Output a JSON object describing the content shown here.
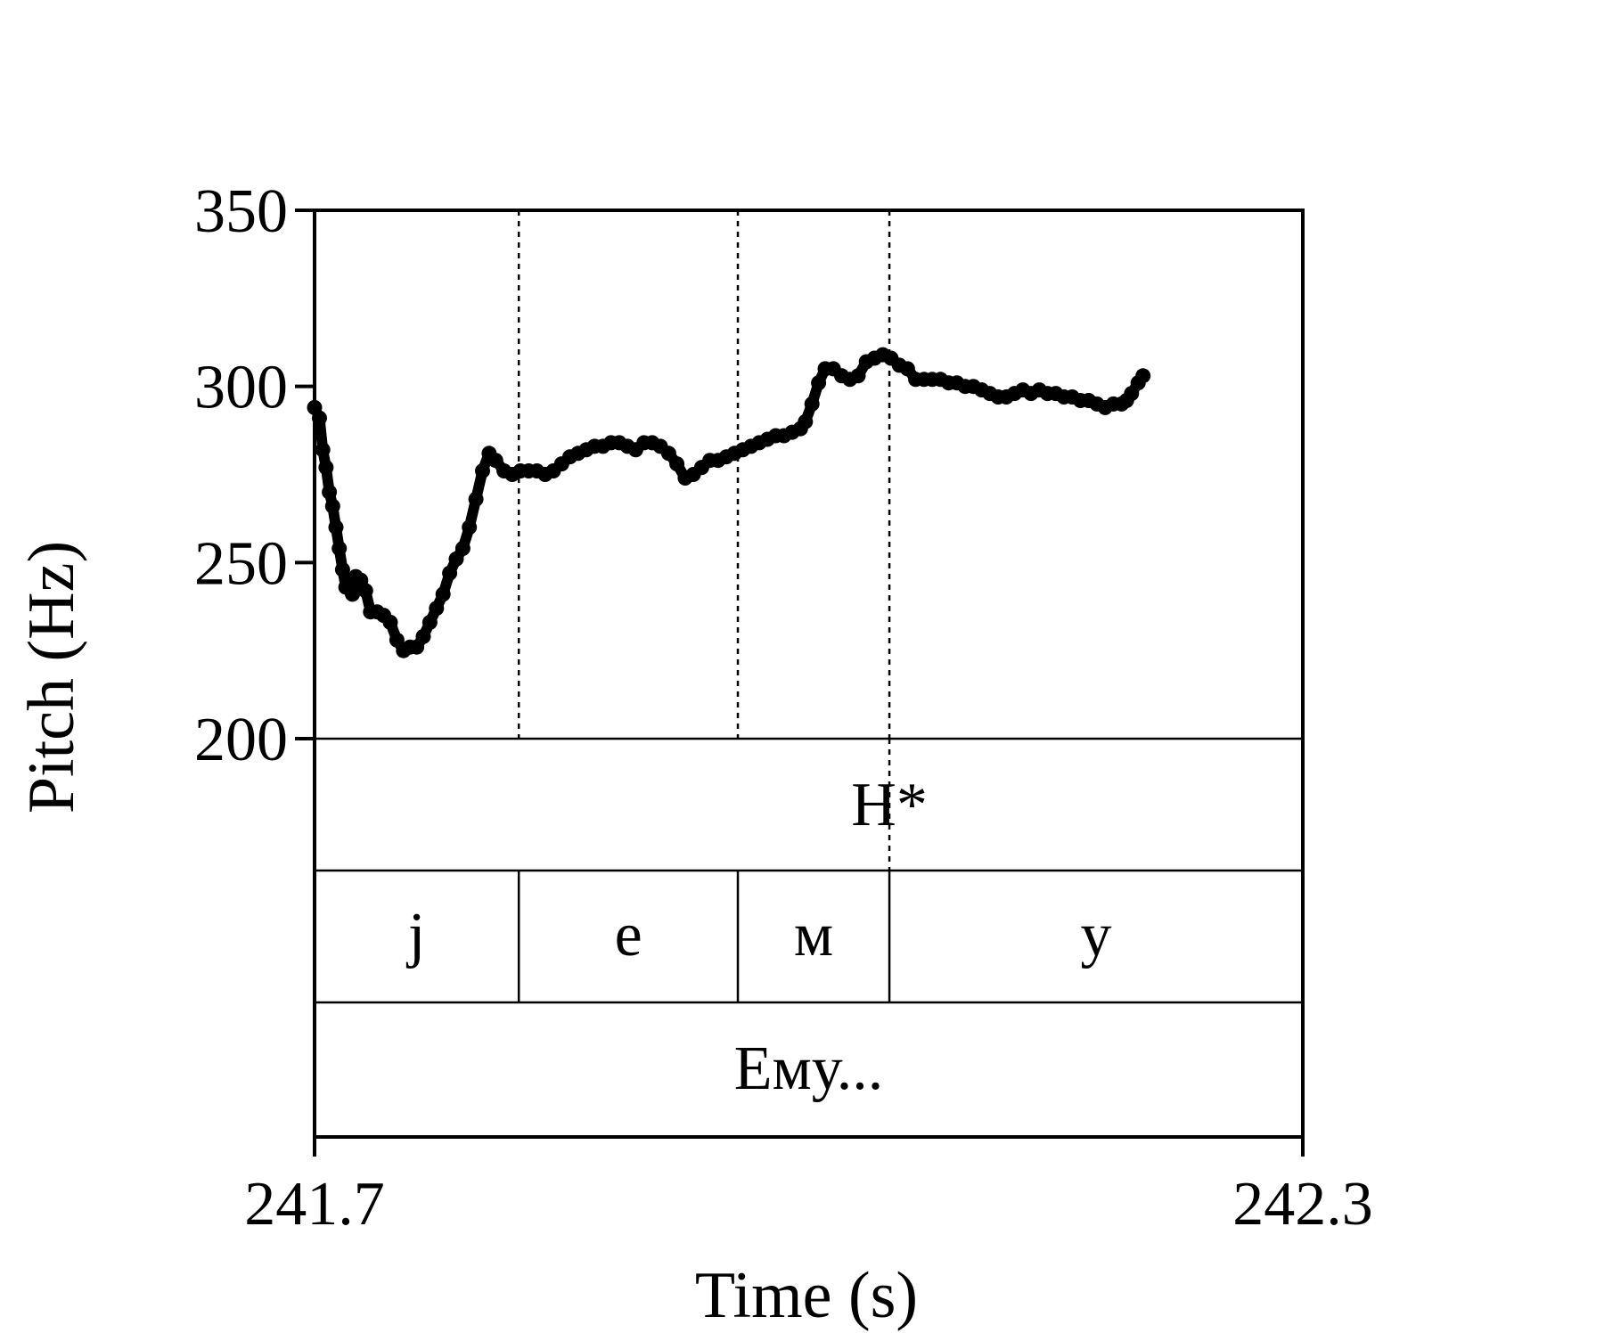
{
  "chart_data": {
    "type": "line",
    "title": "",
    "xlabel": "Time (s)",
    "ylabel": "Pitch (Hz)",
    "xlim": [
      241.7,
      242.3
    ],
    "ylim": [
      200,
      350
    ],
    "x_tick_labels": [
      "241.7",
      "242.3"
    ],
    "y_tick_labels": [
      "200",
      "250",
      "300",
      "350"
    ],
    "x_ticks": [
      241.7,
      242.3
    ],
    "y_ticks": [
      200,
      250,
      300,
      350
    ],
    "grid": false,
    "legend": "none",
    "color": "#000000",
    "series": [
      {
        "points": [
          [
            241.7,
            294
          ],
          [
            241.703,
            291
          ],
          [
            241.705,
            282
          ],
          [
            241.707,
            277
          ],
          [
            241.709,
            270
          ],
          [
            241.711,
            266
          ],
          [
            241.713,
            260
          ],
          [
            241.715,
            254
          ],
          [
            241.717,
            248
          ],
          [
            241.719,
            243
          ],
          [
            241.721,
            244
          ],
          [
            241.723,
            241
          ],
          [
            241.725,
            246
          ],
          [
            241.728,
            245
          ],
          [
            241.731,
            242
          ],
          [
            241.734,
            236
          ],
          [
            241.738,
            236
          ],
          [
            241.742,
            235
          ],
          [
            241.746,
            233
          ],
          [
            241.75,
            228
          ],
          [
            241.754,
            225
          ],
          [
            241.758,
            226
          ],
          [
            241.762,
            226
          ],
          [
            241.766,
            229
          ],
          [
            241.77,
            233
          ],
          [
            241.774,
            237
          ],
          [
            241.778,
            241
          ],
          [
            241.782,
            247
          ],
          [
            241.786,
            251
          ],
          [
            241.79,
            254
          ],
          [
            241.794,
            260
          ],
          [
            241.798,
            268
          ],
          [
            241.802,
            276
          ],
          [
            241.806,
            281
          ],
          [
            241.81,
            279
          ],
          [
            241.815,
            276
          ],
          [
            241.82,
            275
          ],
          [
            241.825,
            276
          ],
          [
            241.83,
            276
          ],
          [
            241.835,
            276
          ],
          [
            241.84,
            275
          ],
          [
            241.845,
            276
          ],
          [
            241.85,
            278
          ],
          [
            241.855,
            280
          ],
          [
            241.86,
            281
          ],
          [
            241.865,
            282
          ],
          [
            241.87,
            283
          ],
          [
            241.875,
            283
          ],
          [
            241.88,
            284
          ],
          [
            241.885,
            284
          ],
          [
            241.89,
            283
          ],
          [
            241.895,
            282
          ],
          [
            241.9,
            284
          ],
          [
            241.905,
            284
          ],
          [
            241.91,
            283
          ],
          [
            241.915,
            281
          ],
          [
            241.92,
            278
          ],
          [
            241.925,
            274
          ],
          [
            241.93,
            275
          ],
          [
            241.935,
            277
          ],
          [
            241.94,
            279
          ],
          [
            241.945,
            279
          ],
          [
            241.95,
            280
          ],
          [
            241.955,
            281
          ],
          [
            241.96,
            282
          ],
          [
            241.965,
            283
          ],
          [
            241.97,
            284
          ],
          [
            241.975,
            285
          ],
          [
            241.98,
            286
          ],
          [
            241.985,
            286
          ],
          [
            241.99,
            287
          ],
          [
            241.995,
            288
          ],
          [
            241.998,
            290
          ],
          [
            242.002,
            295
          ],
          [
            242.006,
            301
          ],
          [
            242.01,
            305
          ],
          [
            242.015,
            305
          ],
          [
            242.02,
            303
          ],
          [
            242.025,
            302
          ],
          [
            242.03,
            303
          ],
          [
            242.035,
            307
          ],
          [
            242.04,
            308
          ],
          [
            242.045,
            309
          ],
          [
            242.05,
            308
          ],
          [
            242.055,
            306
          ],
          [
            242.06,
            305
          ],
          [
            242.065,
            302
          ],
          [
            242.07,
            302
          ],
          [
            242.075,
            302
          ],
          [
            242.08,
            302
          ],
          [
            242.085,
            301
          ],
          [
            242.09,
            301
          ],
          [
            242.095,
            300
          ],
          [
            242.1,
            300
          ],
          [
            242.105,
            299
          ],
          [
            242.11,
            298
          ],
          [
            242.115,
            297
          ],
          [
            242.12,
            297
          ],
          [
            242.125,
            298
          ],
          [
            242.13,
            299
          ],
          [
            242.135,
            298
          ],
          [
            242.14,
            299
          ],
          [
            242.145,
            298
          ],
          [
            242.15,
            298
          ],
          [
            242.155,
            297
          ],
          [
            242.16,
            297
          ],
          [
            242.165,
            296
          ],
          [
            242.17,
            296
          ],
          [
            242.175,
            295
          ],
          [
            242.18,
            294
          ],
          [
            242.185,
            295
          ],
          [
            242.19,
            295
          ],
          [
            242.193,
            296
          ],
          [
            242.196,
            298
          ],
          [
            242.2,
            301
          ],
          [
            242.203,
            303
          ]
        ]
      }
    ],
    "segment_boundaries": [
      241.824,
      241.957,
      242.049
    ],
    "tones": [
      {
        "label": "H*",
        "time": 242.049
      }
    ],
    "segments": [
      {
        "label": "j",
        "start": 241.7,
        "end": 241.824
      },
      {
        "label": "e",
        "start": 241.824,
        "end": 241.957
      },
      {
        "label": "м",
        "start": 241.957,
        "end": 242.049
      },
      {
        "label": "у",
        "start": 242.049,
        "end": 242.3
      }
    ],
    "words": [
      {
        "label": "Ему...",
        "start": 241.7,
        "end": 242.3
      }
    ]
  }
}
